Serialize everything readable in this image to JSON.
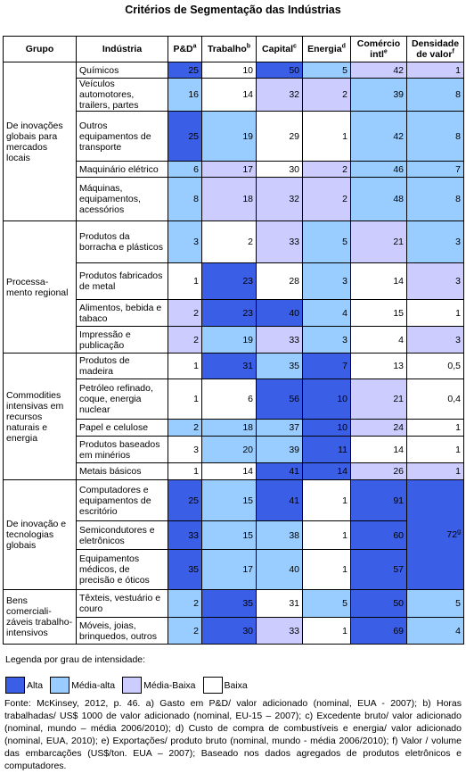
{
  "title": "Critérios de Segmentação das Indústrias",
  "header": [
    {
      "text": "Grupo"
    },
    {
      "text": "Indústria"
    },
    {
      "text": "P&D",
      "sup": "a"
    },
    {
      "text": "Trabalho",
      "sup": "b"
    },
    {
      "text": "Capital",
      "sup": "c"
    },
    {
      "text": "Energia",
      "sup": "d"
    },
    {
      "text": "Comércio intl",
      "sup": "e"
    },
    {
      "text": "Densidade de valor",
      "sup": "f"
    }
  ],
  "groups": [
    {
      "label": "De inovações globais para mercados locais",
      "rows": [
        {
          "industry": "Químicos",
          "cells": [
            {
              "text": "25",
              "color": "#3a5ee6"
            },
            {
              "text": "10",
              "color": "#ffffff"
            },
            {
              "text": "50",
              "color": "#3a5ee6"
            },
            {
              "text": "5",
              "color": "#99ccff"
            },
            {
              "text": "42",
              "color": "#ccccff"
            },
            {
              "text": "1",
              "color": "#ccccff"
            }
          ]
        },
        {
          "industry": "Veículos automotores, trailers, partes",
          "cells": [
            {
              "text": "16",
              "color": "#99ccff"
            },
            {
              "text": "14",
              "color": "#ffffff"
            },
            {
              "text": "32",
              "color": "#ccccff"
            },
            {
              "text": "2",
              "color": "#ccccff"
            },
            {
              "text": "39",
              "color": "#99ccff"
            },
            {
              "text": "8",
              "color": "#99ccff"
            }
          ]
        },
        {
          "industry": "Outros equipamentos de transporte",
          "cells": [
            {
              "text": "25",
              "color": "#3a5ee6"
            },
            {
              "text": "19",
              "color": "#99ccff"
            },
            {
              "text": "29",
              "color": "#ffffff"
            },
            {
              "text": "1",
              "color": "#ffffff"
            },
            {
              "text": "42",
              "color": "#99ccff"
            },
            {
              "text": "8",
              "color": "#99ccff"
            }
          ]
        },
        {
          "industry": "Maquinário elétrico",
          "cells": [
            {
              "text": "6",
              "color": "#99ccff"
            },
            {
              "text": "17",
              "color": "#ccccff"
            },
            {
              "text": "30",
              "color": "#ffffff"
            },
            {
              "text": "2",
              "color": "#ccccff"
            },
            {
              "text": "46",
              "color": "#99ccff"
            },
            {
              "text": "7",
              "color": "#99ccff"
            }
          ]
        },
        {
          "industry": "Máquinas, equipamentos, acessórios",
          "cells": [
            {
              "text": "8",
              "color": "#99ccff"
            },
            {
              "text": "18",
              "color": "#ccccff"
            },
            {
              "text": "32",
              "color": "#ccccff"
            },
            {
              "text": "2",
              "color": "#ccccff"
            },
            {
              "text": "48",
              "color": "#99ccff"
            },
            {
              "text": "8",
              "color": "#99ccff"
            }
          ]
        }
      ]
    },
    {
      "label": "Processa-mento regional",
      "rows": [
        {
          "industry": "Produtos da borracha e plásticos",
          "cells": [
            {
              "text": "3",
              "color": "#99ccff"
            },
            {
              "text": "2",
              "color": "#ffffff"
            },
            {
              "text": "33",
              "color": "#ccccff"
            },
            {
              "text": "5",
              "color": "#99ccff"
            },
            {
              "text": "21",
              "color": "#ccccff"
            },
            {
              "text": "3",
              "color": "#99ccff"
            }
          ]
        },
        {
          "industry": "Produtos fabricados de metal",
          "cells": [
            {
              "text": "1",
              "color": "#ffffff"
            },
            {
              "text": "23",
              "color": "#3a5ee6"
            },
            {
              "text": "28",
              "color": "#ffffff"
            },
            {
              "text": "3",
              "color": "#99ccff"
            },
            {
              "text": "14",
              "color": "#ffffff"
            },
            {
              "text": "3",
              "color": "#ccccff"
            }
          ]
        },
        {
          "industry": "Alimentos, bebida e tabaco",
          "cells": [
            {
              "text": "2",
              "color": "#ccccff"
            },
            {
              "text": "23",
              "color": "#3a5ee6"
            },
            {
              "text": "40",
              "color": "#3a5ee6"
            },
            {
              "text": "4",
              "color": "#99ccff"
            },
            {
              "text": "15",
              "color": "#ffffff"
            },
            {
              "text": "1",
              "color": "#ffffff"
            }
          ]
        },
        {
          "industry": "Impressão e publicação",
          "cells": [
            {
              "text": "2",
              "color": "#ccccff"
            },
            {
              "text": "19",
              "color": "#99ccff"
            },
            {
              "text": "33",
              "color": "#ccccff"
            },
            {
              "text": "3",
              "color": "#99ccff"
            },
            {
              "text": "4",
              "color": "#ffffff"
            },
            {
              "text": "3",
              "color": "#ccccff"
            }
          ]
        }
      ]
    },
    {
      "label": "Commodities intensivas em recursos naturais e energia",
      "rows": [
        {
          "industry": "Produtos de madeira",
          "cells": [
            {
              "text": "1",
              "color": "#ffffff"
            },
            {
              "text": "31",
              "color": "#3a5ee6"
            },
            {
              "text": "35",
              "color": "#99ccff"
            },
            {
              "text": "7",
              "color": "#3a5ee6"
            },
            {
              "text": "13",
              "color": "#ffffff"
            },
            {
              "text": "0,5",
              "color": "#ffffff"
            }
          ]
        },
        {
          "industry": "Petróleo refinado, coque, energia nuclear",
          "cells": [
            {
              "text": "1",
              "color": "#ffffff"
            },
            {
              "text": "6",
              "color": "#ffffff"
            },
            {
              "text": "56",
              "color": "#3a5ee6"
            },
            {
              "text": "10",
              "color": "#3a5ee6"
            },
            {
              "text": "21",
              "color": "#ccccff"
            },
            {
              "text": "0,4",
              "color": "#ffffff"
            }
          ]
        },
        {
          "industry": "Papel e celulose",
          "cells": [
            {
              "text": "2",
              "color": "#99ccff"
            },
            {
              "text": "18",
              "color": "#99ccff"
            },
            {
              "text": "37",
              "color": "#99ccff"
            },
            {
              "text": "10",
              "color": "#3a5ee6"
            },
            {
              "text": "24",
              "color": "#ccccff"
            },
            {
              "text": "1",
              "color": "#ffffff"
            }
          ]
        },
        {
          "industry": "Produtos baseados em minérios",
          "cells": [
            {
              "text": "3",
              "color": "#ffffff"
            },
            {
              "text": "20",
              "color": "#99ccff"
            },
            {
              "text": "39",
              "color": "#99ccff"
            },
            {
              "text": "11",
              "color": "#3a5ee6"
            },
            {
              "text": "14",
              "color": "#ffffff"
            },
            {
              "text": "1",
              "color": "#ffffff"
            }
          ]
        },
        {
          "industry": "Metais básicos",
          "cells": [
            {
              "text": "1",
              "color": "#ffffff"
            },
            {
              "text": "14",
              "color": "#ffffff"
            },
            {
              "text": "41",
              "color": "#3a5ee6"
            },
            {
              "text": "14",
              "color": "#3a5ee6"
            },
            {
              "text": "26",
              "color": "#ccccff"
            },
            {
              "text": "1",
              "color": "#ccccff"
            }
          ]
        }
      ]
    },
    {
      "label": "De inovação e tecnologias globais",
      "rows": [
        {
          "industry": "Computadores e equipamentos de escritório",
          "cells": [
            {
              "text": "25",
              "color": "#3a5ee6"
            },
            {
              "text": "15",
              "color": "#99ccff"
            },
            {
              "text": "41",
              "color": "#3a5ee6"
            },
            {
              "text": "1",
              "color": "#ffffff"
            },
            {
              "text": "91",
              "color": "#3a5ee6"
            },
            {
              "text": "72",
              "sup": "g",
              "color": "#3a5ee6"
            }
          ]
        },
        {
          "industry": "Semicondutores e eletrônicos",
          "cells": [
            {
              "text": "33",
              "color": "#3a5ee6"
            },
            {
              "text": "15",
              "color": "#99ccff"
            },
            {
              "text": "38",
              "color": "#99ccff"
            },
            {
              "text": "1",
              "color": "#ffffff"
            },
            {
              "text": "60",
              "color": "#3a5ee6"
            }
          ]
        },
        {
          "industry": "Equipamentos médicos, de precisão e óticos",
          "cells": [
            {
              "text": "35",
              "color": "#3a5ee6"
            },
            {
              "text": "17",
              "color": "#99ccff"
            },
            {
              "text": "40",
              "color": "#99ccff"
            },
            {
              "text": "1",
              "color": "#ffffff"
            },
            {
              "text": "57",
              "color": "#3a5ee6"
            }
          ]
        }
      ]
    },
    {
      "label": "Bens comerciali-záveis trabalho-intensivos",
      "rows": [
        {
          "industry": "Têxteis, vestuário e couro",
          "cells": [
            {
              "text": "2",
              "color": "#99ccff"
            },
            {
              "text": "35",
              "color": "#3a5ee6"
            },
            {
              "text": "31",
              "color": "#ffffff"
            },
            {
              "text": "5",
              "color": "#99ccff"
            },
            {
              "text": "50",
              "color": "#3a5ee6"
            },
            {
              "text": "5",
              "color": "#99ccff"
            }
          ]
        },
        {
          "industry": "Móveis, joias, brinquedos, outros",
          "cells": [
            {
              "text": "2",
              "color": "#99ccff"
            },
            {
              "text": "30",
              "color": "#3a5ee6"
            },
            {
              "text": "33",
              "color": "#ccccff"
            },
            {
              "text": "1",
              "color": "#ffffff"
            },
            {
              "text": "69",
              "color": "#3a5ee6"
            },
            {
              "text": "4",
              "color": "#99ccff"
            }
          ]
        }
      ]
    }
  ],
  "legend": {
    "title": "Legenda por grau de intensidade:",
    "items": [
      {
        "label": "Alta",
        "color": "#3a5ee6"
      },
      {
        "label": "Média-alta",
        "color": "#99ccff"
      },
      {
        "label": "Média-Baixa",
        "color": "#ccccff"
      },
      {
        "label": "Baixa",
        "color": "#ffffff"
      }
    ]
  },
  "footnote": "Fonte: McKinsey, 2012, p. 46. a) Gasto em P&D/ valor adicionado (nominal, EUA - 2007); b) Horas trabalhadas/ US$ 1000 de valor adicionado (nominal, EU-15 – 2007); c) Excedente bruto/ valor adicionado (nominal, mundo – média 2006/2010); d) Custo de compra de combustíveis e energia/ valor adicionado (nominal, EUA, 2010); e) Exportações/ produto bruto (nominal, mundo - média 2006/2010); f) Valor / volume das embarcações (US$/ton. EUA – 2007); Baseado nos dados agregados de produtos eletrônicos e computadores."
}
